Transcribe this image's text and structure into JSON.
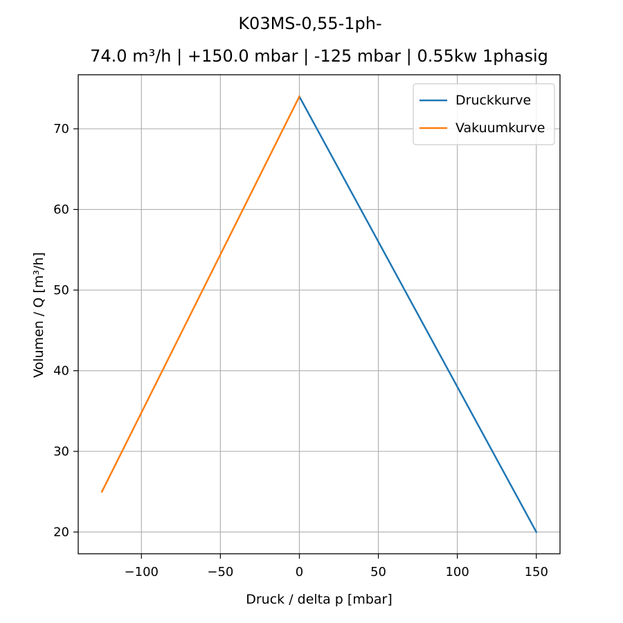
{
  "chart_data": {
    "type": "line",
    "title": "K03MS-0,55-1ph-",
    "subtitle": "74.0 m³/h | +150.0 mbar | -125 mbar | 0.55kw 1phasig",
    "xlabel": "Druck / delta p [mbar]",
    "ylabel": "Volumen / Q [m³/h]",
    "xlim": [
      -140,
      165
    ],
    "ylim": [
      17.3,
      76.7
    ],
    "xticks": [
      -100,
      -50,
      0,
      50,
      100,
      150
    ],
    "xtick_labels": [
      "−100",
      "−50",
      "0",
      "50",
      "100",
      "150"
    ],
    "yticks": [
      20,
      30,
      40,
      50,
      60,
      70
    ],
    "ytick_labels": [
      "20",
      "30",
      "40",
      "50",
      "60",
      "70"
    ],
    "grid": true,
    "legend_position": "top-right",
    "series": [
      {
        "name": "Druckkurve",
        "color": "#1f77b4",
        "x": [
          0,
          150
        ],
        "y": [
          74.0,
          20.0
        ]
      },
      {
        "name": "Vakuumkurve",
        "color": "#ff7f0e",
        "x": [
          -125,
          0
        ],
        "y": [
          25.0,
          74.0
        ]
      }
    ]
  }
}
